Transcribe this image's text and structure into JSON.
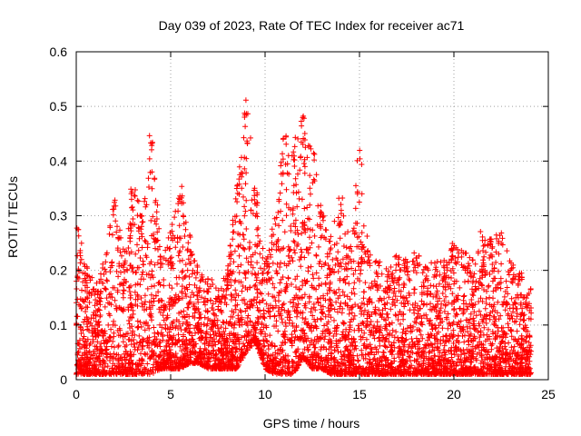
{
  "chart_data": {
    "type": "scatter",
    "title": "Day 039 of 2023, Rate Of TEC Index for receiver ac71",
    "xlabel": "GPS time / hours",
    "ylabel": "ROTI / TECUs",
    "xlim": [
      0,
      25
    ],
    "ylim": [
      0,
      0.6
    ],
    "xticks": [
      "0",
      "5",
      "10",
      "15",
      "20",
      "25"
    ],
    "yticks": [
      "0",
      "0.1",
      "0.2",
      "0.3",
      "0.4",
      "0.5",
      "0.6"
    ],
    "grid": true,
    "marker": "+",
    "colors": {
      "points": "#ff0000",
      "grid": "#a0a0a0",
      "axes": "#000000"
    },
    "envelope_x": [
      0.0,
      0.5,
      1.0,
      1.5,
      2.0,
      2.5,
      3.0,
      3.5,
      4.0,
      4.5,
      5.0,
      5.5,
      6.0,
      6.5,
      7.0,
      7.5,
      8.0,
      8.5,
      9.0,
      9.5,
      10.0,
      10.5,
      11.0,
      11.5,
      12.0,
      12.5,
      13.0,
      13.5,
      14.0,
      14.5,
      15.0,
      15.5,
      16.0,
      16.5,
      17.0,
      17.5,
      18.0,
      18.5,
      19.0,
      19.5,
      20.0,
      20.5,
      21.0,
      21.5,
      22.0,
      22.5,
      23.0,
      23.5,
      24.0
    ],
    "envelope_high": [
      0.3,
      0.22,
      0.17,
      0.22,
      0.35,
      0.24,
      0.36,
      0.31,
      0.46,
      0.23,
      0.27,
      0.36,
      0.27,
      0.2,
      0.19,
      0.17,
      0.2,
      0.36,
      0.52,
      0.36,
      0.22,
      0.3,
      0.46,
      0.43,
      0.5,
      0.43,
      0.31,
      0.27,
      0.34,
      0.25,
      0.43,
      0.24,
      0.22,
      0.2,
      0.24,
      0.22,
      0.24,
      0.21,
      0.22,
      0.22,
      0.25,
      0.24,
      0.22,
      0.28,
      0.26,
      0.27,
      0.22,
      0.2,
      0.17
    ],
    "envelope_low": [
      0.01,
      0.01,
      0.01,
      0.01,
      0.01,
      0.01,
      0.01,
      0.01,
      0.01,
      0.02,
      0.02,
      0.02,
      0.03,
      0.03,
      0.02,
      0.02,
      0.02,
      0.02,
      0.05,
      0.07,
      0.02,
      0.01,
      0.01,
      0.01,
      0.04,
      0.02,
      0.02,
      0.01,
      0.01,
      0.01,
      0.01,
      0.01,
      0.01,
      0.01,
      0.01,
      0.01,
      0.01,
      0.01,
      0.01,
      0.01,
      0.01,
      0.01,
      0.01,
      0.01,
      0.01,
      0.01,
      0.01,
      0.01,
      0.01
    ]
  }
}
